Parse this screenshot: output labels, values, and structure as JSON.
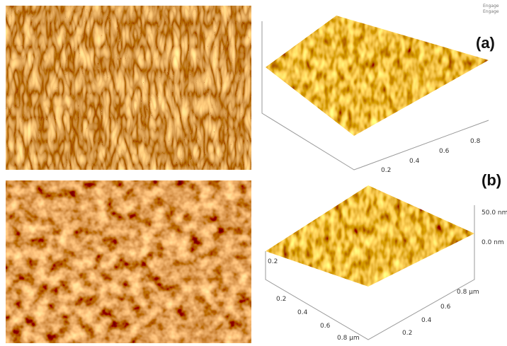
{
  "header": {
    "engage": [
      "Engage",
      "Engage"
    ]
  },
  "panels": [
    {
      "label": "(a)",
      "axis_ticks": [
        "0.2",
        "0.4",
        "0.6",
        "0.8"
      ]
    },
    {
      "label": "(b)",
      "z_ticks": [
        "50.0 nm",
        "0.0 nm"
      ],
      "left_tick": "0.2",
      "x_ticks": [
        "0.2",
        "0.4",
        "0.6",
        "0.8 µm"
      ],
      "y_ticks": [
        "0.2",
        "0.4",
        "0.6",
        "0.8 µm"
      ]
    }
  ]
}
